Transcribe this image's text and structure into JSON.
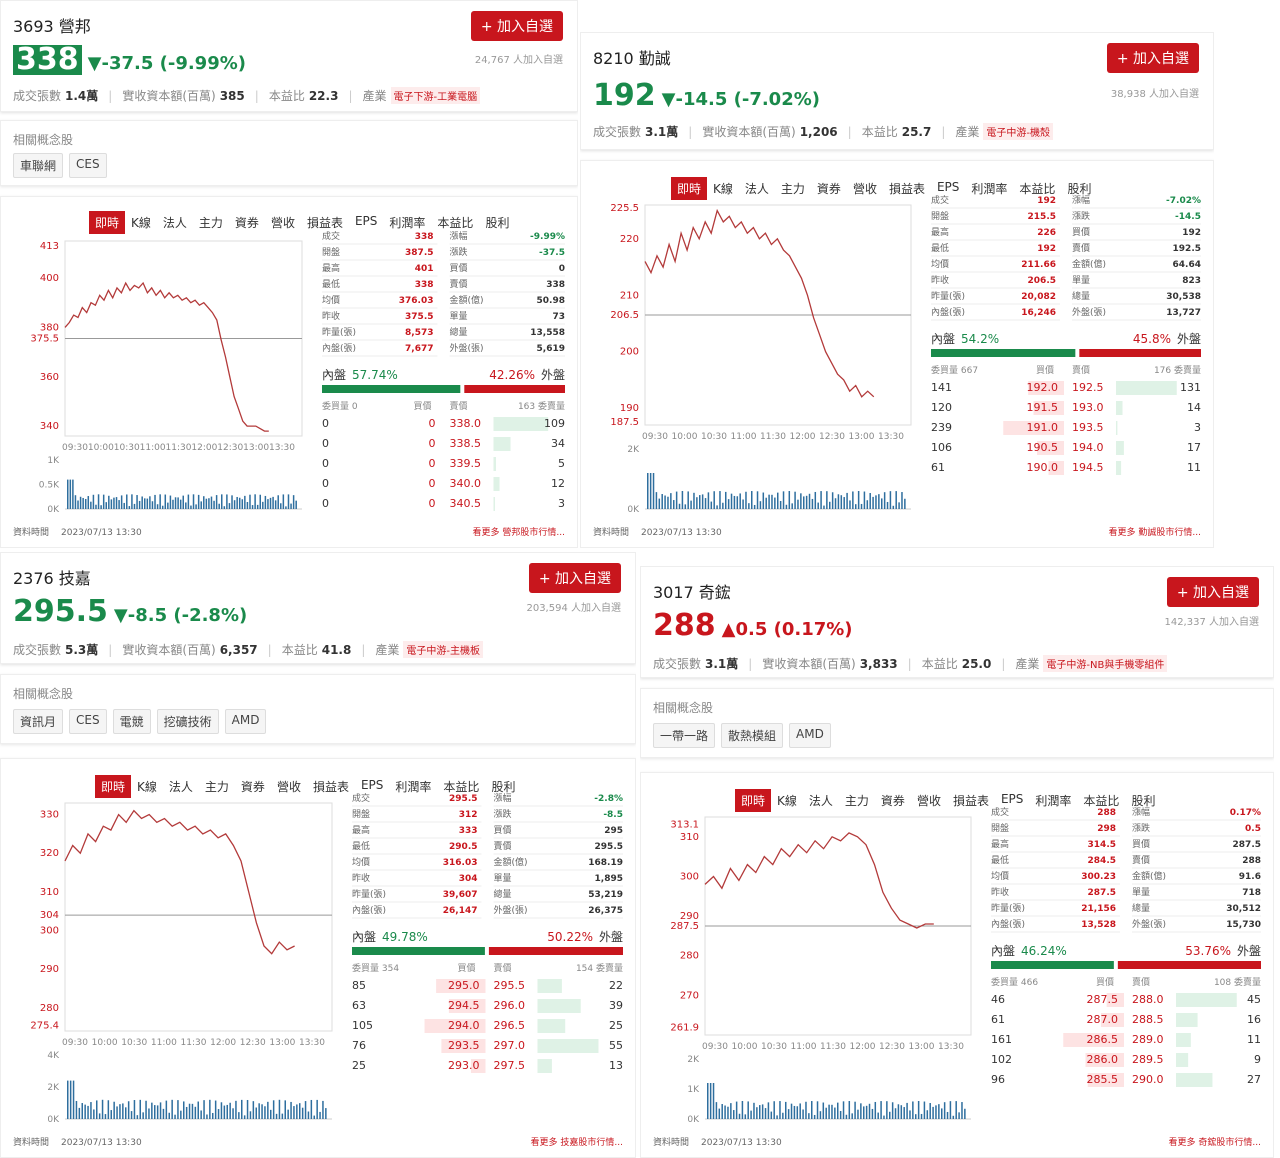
{
  "common": {
    "add_label": "+ 加入自選",
    "concept_label": "相關概念股",
    "tabs": [
      "即時",
      "K線",
      "法人",
      "主力",
      "資券",
      "營收",
      "損益表",
      "EPS",
      "利潤率",
      "本益比",
      "股利"
    ],
    "stat_vol_label": "成交張數",
    "stat_cap_label": "實收資本額(百萬)",
    "stat_pe_label": "本益比",
    "stat_ind_label": "產業",
    "data_time_label": "資料時間",
    "x_ticks": [
      "09:30",
      "10:00",
      "10:30",
      "11:00",
      "11:30",
      "12:00",
      "12:30",
      "13:00",
      "13:30"
    ],
    "buy_lbl": "買價",
    "sell_lbl": "賣價",
    "inner_lbl": "內盤",
    "outer_lbl": "外盤",
    "colors": {
      "up": "#c8161d",
      "down": "#1a8a4b",
      "line": "#b33a3a"
    }
  },
  "stocks": [
    {
      "code_name": "3693 營邦",
      "price": "338",
      "dir": "down",
      "change": "▼-37.5 (-9.99%)",
      "watchers": "24,767 人加入自選",
      "volume": "1.4萬",
      "capital": "385",
      "pe": "22.3",
      "industry": "電子下游-工業電腦",
      "concepts": [
        "車聯網",
        "CES"
      ],
      "stats_left": [
        [
          "成交",
          "338"
        ],
        [
          "開盤",
          "387.5"
        ],
        [
          "最高",
          "401"
        ],
        [
          "最低",
          "338"
        ],
        [
          "均價",
          "376.03"
        ],
        [
          "昨收",
          "375.5"
        ],
        [
          "昨量(張)",
          "8,573"
        ],
        [
          "內盤(張)",
          "7,677"
        ]
      ],
      "stats_right": [
        [
          "漲幅",
          "-9.99%"
        ],
        [
          "漲跌",
          "-37.5"
        ],
        [
          "買價",
          "0"
        ],
        [
          "賣價",
          "338"
        ],
        [
          "金額(億)",
          "50.98"
        ],
        [
          "單量",
          "73"
        ],
        [
          "總量",
          "13,558"
        ],
        [
          "外盤(張)",
          "5,619"
        ]
      ],
      "inner_pct": "57.74%",
      "outer_pct": "42.26%",
      "inner_frac": 0.5774,
      "buy_vol_label": "委買量 0",
      "sell_vol_label": "163 委賣量",
      "book": [
        [
          "0",
          "0",
          "338.0",
          "109"
        ],
        [
          "0",
          "0",
          "338.5",
          "34"
        ],
        [
          "0",
          "0",
          "339.5",
          "5"
        ],
        [
          "0",
          "0",
          "340.0",
          "12"
        ],
        [
          "0",
          "0",
          "340.5",
          "3"
        ]
      ],
      "y_ticks": [
        "413",
        "400",
        "380",
        "375.5",
        "360",
        "340"
      ],
      "y_range": [
        336,
        415
      ],
      "ref": 375.5,
      "vol_ticks": [
        "1K",
        "0.5K",
        "0K"
      ],
      "series": [
        380,
        382,
        385,
        384,
        388,
        386,
        390,
        389,
        393,
        391,
        395,
        392,
        396,
        394,
        398,
        395,
        397,
        396,
        398,
        394,
        396,
        393,
        395,
        392,
        394,
        392,
        393,
        391,
        392,
        390,
        391,
        389,
        390,
        388,
        386,
        383,
        375,
        368,
        360,
        352,
        347,
        342,
        340,
        340,
        340,
        339,
        338,
        338
      ],
      "time": "2023/07/13 13:30",
      "more": "看更多 營邦股市行情..."
    },
    {
      "code_name": "8210 勤誠",
      "price": "192",
      "dir": "downtxt",
      "change": "▼-14.5 (-7.02%)",
      "watchers": "38,938 人加入自選",
      "volume": "3.1萬",
      "capital": "1,206",
      "pe": "25.7",
      "industry": "電子中游-機殼",
      "concepts": [],
      "stats_left": [
        [
          "成交",
          "192"
        ],
        [
          "開盤",
          "215.5"
        ],
        [
          "最高",
          "226"
        ],
        [
          "最低",
          "192"
        ],
        [
          "均價",
          "211.66"
        ],
        [
          "昨收",
          "206.5"
        ],
        [
          "昨量(張)",
          "20,082"
        ],
        [
          "內盤(張)",
          "16,246"
        ]
      ],
      "stats_right": [
        [
          "漲幅",
          "-7.02%"
        ],
        [
          "漲跌",
          "-14.5"
        ],
        [
          "買價",
          "192"
        ],
        [
          "賣價",
          "192.5"
        ],
        [
          "金額(億)",
          "64.64"
        ],
        [
          "單量",
          "823"
        ],
        [
          "總量",
          "30,538"
        ],
        [
          "外盤(張)",
          "13,727"
        ]
      ],
      "inner_pct": "54.2%",
      "outer_pct": "45.8%",
      "inner_frac": 0.542,
      "buy_vol_label": "委買量 667",
      "sell_vol_label": "176 委賣量",
      "book": [
        [
          "141",
          "192.0",
          "192.5",
          "131"
        ],
        [
          "120",
          "191.5",
          "193.0",
          "14"
        ],
        [
          "239",
          "191.0",
          "193.5",
          "3"
        ],
        [
          "106",
          "190.5",
          "194.0",
          "17"
        ],
        [
          "61",
          "190.0",
          "194.5",
          "11"
        ]
      ],
      "y_ticks": [
        "225.5",
        "220",
        "210",
        "206.5",
        "200",
        "190",
        "187.5"
      ],
      "y_range": [
        187,
        226
      ],
      "ref": 206.5,
      "vol_ticks": [
        "2K",
        "0K"
      ],
      "series": [
        216,
        214,
        217,
        215,
        219,
        216,
        221,
        218,
        222,
        220,
        223,
        221,
        225,
        223,
        224,
        222,
        223,
        221,
        222,
        220,
        221,
        219,
        220,
        218,
        217,
        215,
        213,
        210,
        206,
        203,
        200,
        198,
        196,
        195,
        193,
        194,
        192,
        193,
        192
      ],
      "time": "2023/07/13 13:30",
      "more": "看更多 勤誠股市行情..."
    },
    {
      "code_name": "2376 技嘉",
      "price": "295.5",
      "dir": "downtxt",
      "change": "▼-8.5 (-2.8%)",
      "watchers": "203,594 人加入自選",
      "volume": "5.3萬",
      "capital": "6,357",
      "pe": "41.8",
      "industry": "電子中游-主機板",
      "concepts": [
        "資訊月",
        "CES",
        "電競",
        "挖礦技術",
        "AMD"
      ],
      "stats_left": [
        [
          "成交",
          "295.5"
        ],
        [
          "開盤",
          "312"
        ],
        [
          "最高",
          "333"
        ],
        [
          "最低",
          "290.5"
        ],
        [
          "均價",
          "316.03"
        ],
        [
          "昨收",
          "304"
        ],
        [
          "昨量(張)",
          "39,607"
        ],
        [
          "內盤(張)",
          "26,147"
        ]
      ],
      "stats_right": [
        [
          "漲幅",
          "-2.8%"
        ],
        [
          "漲跌",
          "-8.5"
        ],
        [
          "買價",
          "295"
        ],
        [
          "賣價",
          "295.5"
        ],
        [
          "金額(億)",
          "168.19"
        ],
        [
          "單量",
          "1,895"
        ],
        [
          "總量",
          "53,219"
        ],
        [
          "外盤(張)",
          "26,375"
        ]
      ],
      "inner_pct": "49.78%",
      "outer_pct": "50.22%",
      "inner_frac": 0.4978,
      "buy_vol_label": "委買量 354",
      "sell_vol_label": "154 委賣量",
      "book": [
        [
          "85",
          "295.0",
          "295.5",
          "22"
        ],
        [
          "63",
          "294.5",
          "296.0",
          "39"
        ],
        [
          "105",
          "294.0",
          "296.5",
          "25"
        ],
        [
          "76",
          "293.5",
          "297.0",
          "55"
        ],
        [
          "25",
          "293.0",
          "297.5",
          "13"
        ]
      ],
      "y_ticks": [
        "330",
        "320",
        "310",
        "304",
        "300",
        "290",
        "280",
        "275.4"
      ],
      "y_range": [
        274,
        333
      ],
      "ref": 304,
      "vol_ticks": [
        "4K",
        "2K",
        "0K"
      ],
      "series": [
        318,
        322,
        320,
        325,
        323,
        327,
        326,
        330,
        328,
        331,
        329,
        330,
        328,
        329,
        327,
        328,
        326,
        327,
        325,
        326,
        324,
        325,
        322,
        318,
        310,
        302,
        296,
        294,
        297,
        295,
        296
      ],
      "time": "2023/07/13 13:30",
      "more": "看更多 技嘉股市行情..."
    },
    {
      "code_name": "3017 奇鋐",
      "price": "288",
      "dir": "up",
      "change": "▲0.5 (0.17%)",
      "watchers": "142,337 人加入自選",
      "volume": "3.1萬",
      "capital": "3,833",
      "pe": "25.0",
      "industry": "電子中游-NB與手機零組件",
      "concepts": [
        "一帶一路",
        "散熱模組",
        "AMD"
      ],
      "stats_left": [
        [
          "成交",
          "288"
        ],
        [
          "開盤",
          "298"
        ],
        [
          "最高",
          "314.5"
        ],
        [
          "最低",
          "284.5"
        ],
        [
          "均價",
          "300.23"
        ],
        [
          "昨收",
          "287.5"
        ],
        [
          "昨量(張)",
          "21,156"
        ],
        [
          "內盤(張)",
          "13,528"
        ]
      ],
      "stats_right": [
        [
          "漲幅",
          "0.17%"
        ],
        [
          "漲跌",
          "0.5"
        ],
        [
          "買價",
          "287.5"
        ],
        [
          "賣價",
          "288"
        ],
        [
          "金額(億)",
          "91.6"
        ],
        [
          "單量",
          "718"
        ],
        [
          "總量",
          "30,512"
        ],
        [
          "外盤(張)",
          "15,730"
        ]
      ],
      "inner_pct": "46.24%",
      "outer_pct": "53.76%",
      "inner_frac": 0.4624,
      "buy_vol_label": "委買量 466",
      "sell_vol_label": "108 委賣量",
      "book": [
        [
          "46",
          "287.5",
          "288.0",
          "45"
        ],
        [
          "61",
          "287.0",
          "288.5",
          "16"
        ],
        [
          "161",
          "286.5",
          "289.0",
          "11"
        ],
        [
          "102",
          "286.0",
          "289.5",
          "9"
        ],
        [
          "96",
          "285.5",
          "290.0",
          "27"
        ]
      ],
      "y_ticks": [
        "313.1",
        "310",
        "300",
        "290",
        "287.5",
        "280",
        "270",
        "261.9"
      ],
      "y_range": [
        260,
        315
      ],
      "ref": 287.5,
      "vol_ticks": [
        "2K",
        "1K",
        "0K"
      ],
      "series": [
        298,
        300,
        297,
        302,
        299,
        303,
        301,
        305,
        303,
        307,
        305,
        308,
        306,
        309,
        307,
        310,
        309,
        311,
        310,
        308,
        303,
        296,
        292,
        289,
        288,
        287,
        288,
        288
      ],
      "time": "2023/07/13 13:30",
      "more": "看更多 奇鋐股市行情..."
    }
  ]
}
